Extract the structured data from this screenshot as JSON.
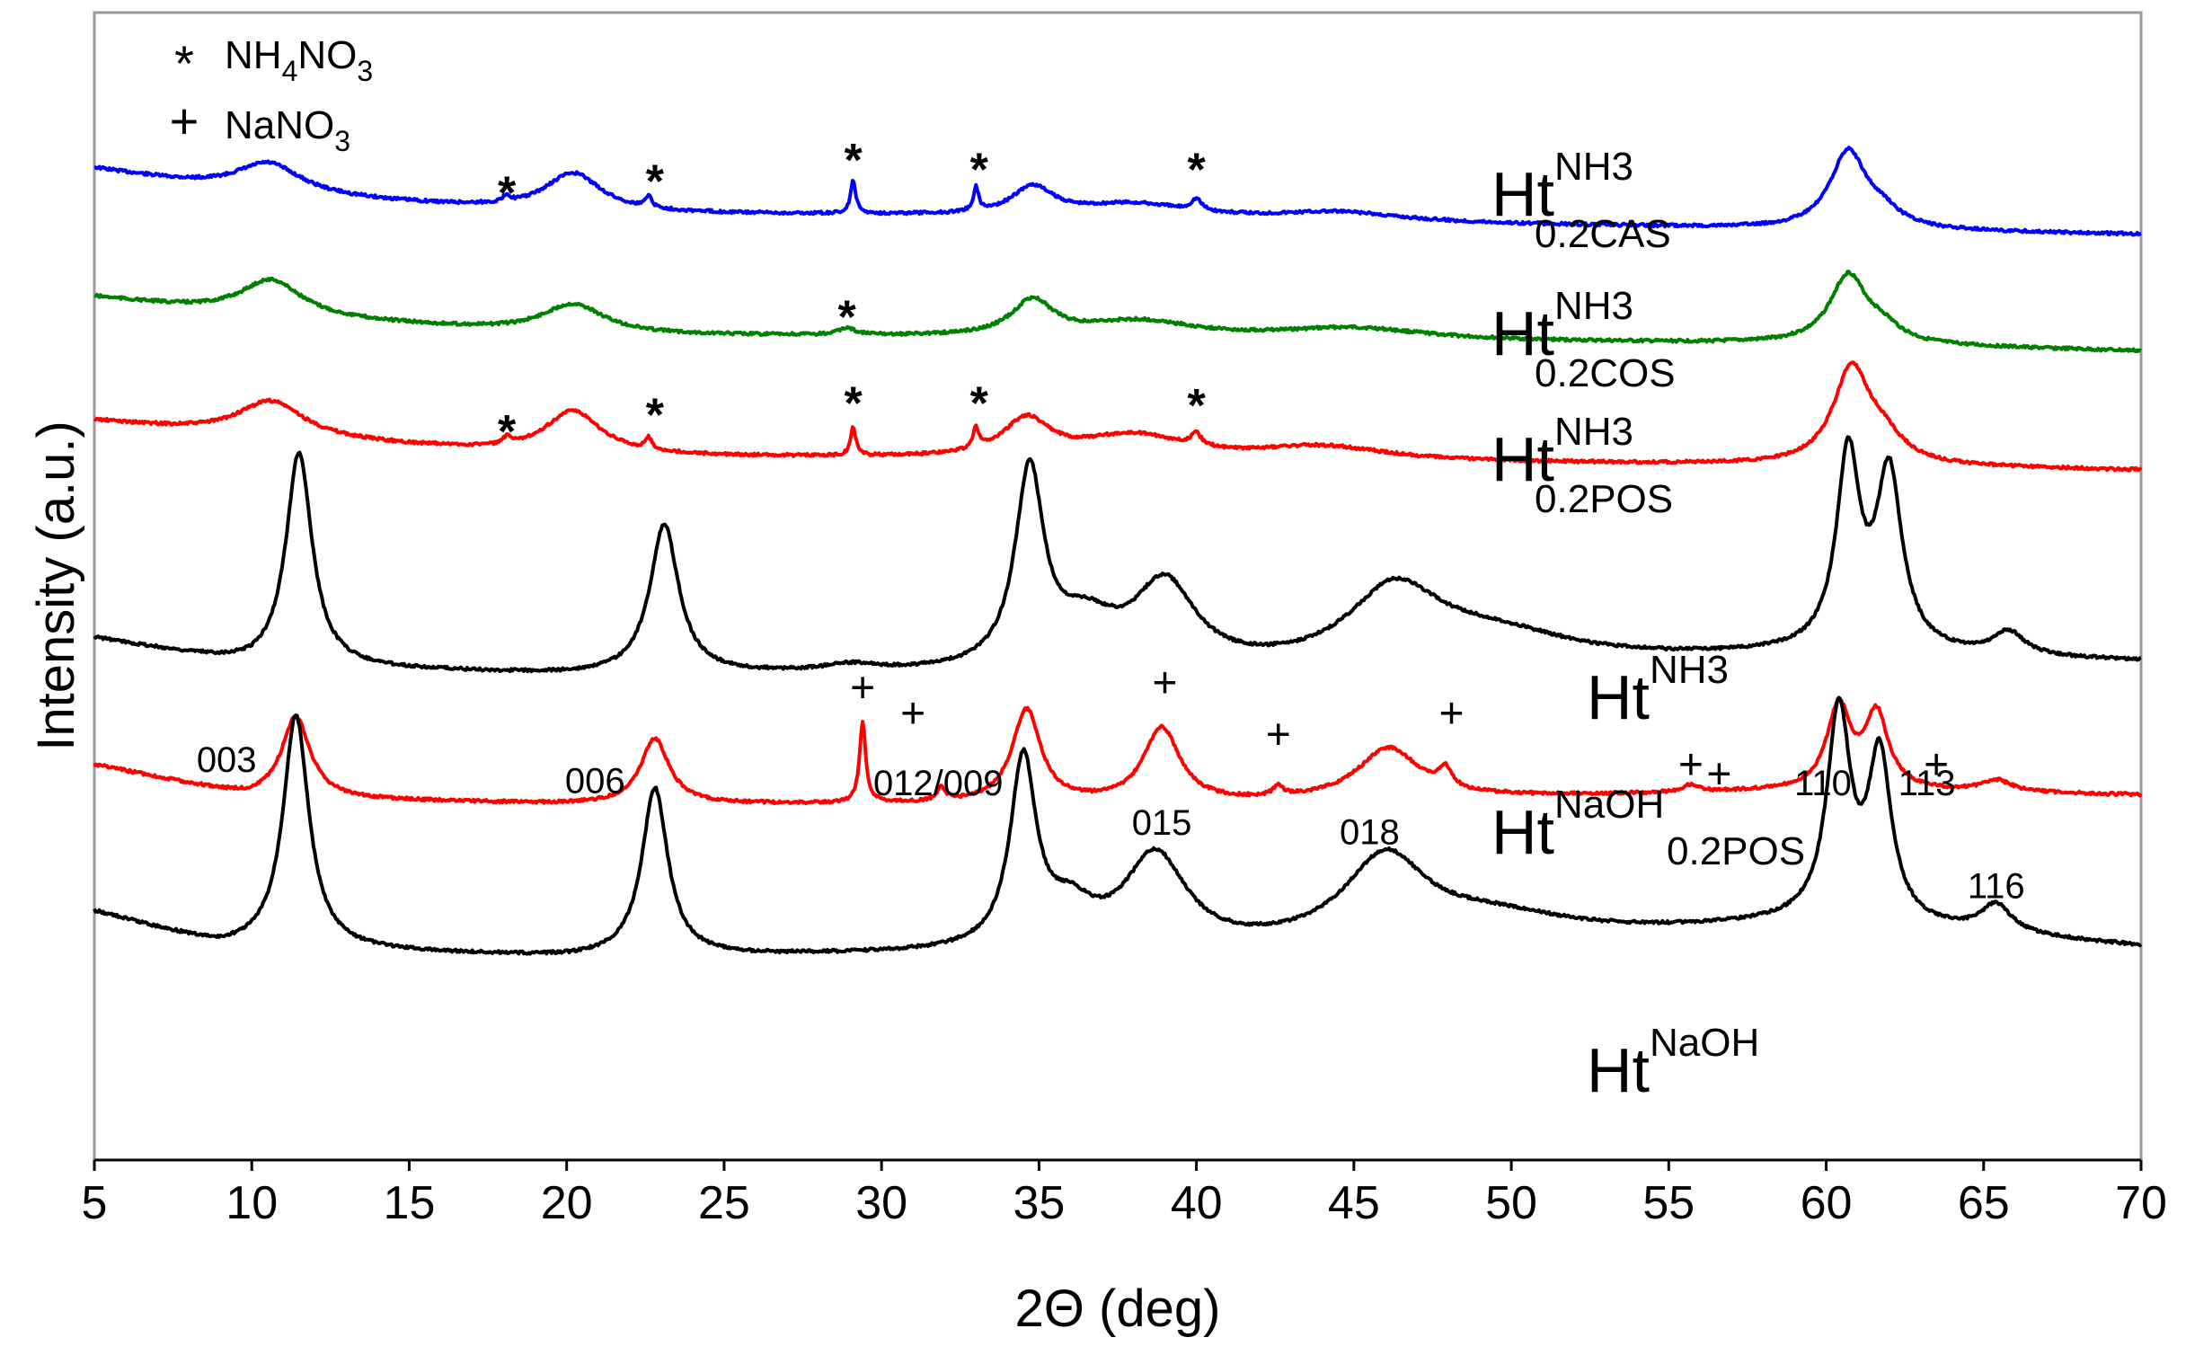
{
  "chart_data": {
    "type": "line",
    "title": "",
    "xlabel": "2Θ (deg)",
    "ylabel": "Intensity (a.u.)",
    "xlim": [
      5,
      70
    ],
    "xticks": [
      5,
      10,
      15,
      20,
      25,
      30,
      35,
      40,
      45,
      50,
      55,
      60,
      65,
      70
    ],
    "grid": false,
    "legend": {
      "position": "top-left",
      "entries": [
        {
          "symbol": "*",
          "base": "NH",
          "sub1": "4",
          "mid": "NO",
          "sub2": "3"
        },
        {
          "symbol": "+",
          "base": "NaNO",
          "sub1": "3",
          "mid": "",
          "sub2": ""
        }
      ]
    },
    "series": [
      {
        "id": "cas",
        "color": "#0000ff",
        "label": {
          "base": "Ht",
          "sup": "NH3",
          "sub": "0.2CAS"
        },
        "baseline": [
          [
            5,
            0.67
          ],
          [
            10,
            0.78
          ],
          [
            20,
            0.86
          ],
          [
            30,
            0.87
          ],
          [
            40,
            0.89
          ],
          [
            50,
            0.91
          ],
          [
            60,
            0.93
          ],
          [
            70,
            0.95
          ]
        ],
        "peaks": [
          [
            10.5,
            0.14,
            1.3
          ],
          [
            20.2,
            0.17,
            1.1
          ],
          [
            34.8,
            0.12,
            0.8
          ],
          [
            38,
            0.06,
            2.2
          ],
          [
            44.5,
            0.04,
            2.5
          ],
          [
            60.7,
            0.33,
            0.7
          ],
          [
            61.8,
            0.06,
            0.7
          ],
          [
            18.1,
            0.03,
            0.12
          ],
          [
            22.6,
            0.05,
            0.12
          ],
          [
            29.1,
            0.14,
            0.1
          ],
          [
            33,
            0.1,
            0.1
          ],
          [
            40,
            0.05,
            0.2
          ]
        ]
      },
      {
        "id": "cos",
        "color": "#008000",
        "label": {
          "base": "Ht",
          "sup": "NH3",
          "sub": "0.2COS"
        },
        "baseline": [
          [
            5,
            1.22
          ],
          [
            10,
            1.3
          ],
          [
            20,
            1.38
          ],
          [
            30,
            1.39
          ],
          [
            40,
            1.4
          ],
          [
            50,
            1.41
          ],
          [
            60,
            1.42
          ],
          [
            70,
            1.45
          ]
        ],
        "peaks": [
          [
            10.6,
            0.16,
            1.2
          ],
          [
            20.2,
            0.13,
            1.2
          ],
          [
            34.8,
            0.15,
            0.8
          ],
          [
            38.2,
            0.07,
            2.2
          ],
          [
            45,
            0.05,
            2.8
          ],
          [
            60.7,
            0.29,
            0.7
          ],
          [
            61.8,
            0.06,
            0.7
          ],
          [
            28.9,
            0.03,
            0.3
          ]
        ]
      },
      {
        "id": "pos",
        "color": "#ff0000",
        "label": {
          "base": "Ht",
          "sup": "NH3",
          "sub": "0.2POS"
        },
        "baseline": [
          [
            5,
            1.75
          ],
          [
            10,
            1.82
          ],
          [
            20,
            1.9
          ],
          [
            30,
            1.91
          ],
          [
            40,
            1.92
          ],
          [
            50,
            1.93
          ],
          [
            60,
            1.94
          ],
          [
            70,
            1.96
          ]
        ],
        "peaks": [
          [
            10.6,
            0.16,
            1.3
          ],
          [
            20.2,
            0.19,
            1.1
          ],
          [
            34.6,
            0.16,
            0.9
          ],
          [
            38,
            0.1,
            2
          ],
          [
            44,
            0.06,
            2.5
          ],
          [
            60.8,
            0.4,
            0.7
          ],
          [
            61.8,
            0.1,
            0.8
          ],
          [
            18.1,
            0.03,
            0.12
          ],
          [
            22.6,
            0.05,
            0.12
          ],
          [
            29.1,
            0.12,
            0.1
          ],
          [
            33,
            0.09,
            0.1
          ],
          [
            40,
            0.05,
            0.2
          ]
        ]
      },
      {
        "id": "ht-nh3",
        "color": "#000000",
        "label": {
          "base": "Ht",
          "sup": "NH3",
          "sub": ""
        },
        "baseline": [
          [
            5,
            2.68
          ],
          [
            10,
            2.8
          ],
          [
            20,
            2.84
          ],
          [
            30,
            2.84
          ],
          [
            40,
            2.84
          ],
          [
            50,
            2.8
          ],
          [
            60,
            2.75
          ],
          [
            70,
            2.78
          ]
        ],
        "peaks": [
          [
            11.5,
            0.92,
            0.5
          ],
          [
            23.1,
            0.64,
            0.55
          ],
          [
            34.7,
            0.83,
            0.55
          ],
          [
            36.5,
            0.18,
            1.2
          ],
          [
            39,
            0.36,
            1.2
          ],
          [
            46.3,
            0.32,
            1.8
          ],
          [
            49.5,
            0.12,
            3
          ],
          [
            60.7,
            0.82,
            0.45
          ],
          [
            62,
            0.75,
            0.5
          ],
          [
            65.8,
            0.1,
            0.6
          ],
          [
            29,
            0.03,
            1
          ]
        ]
      },
      {
        "id": "naoh-pos",
        "color": "#ff0000",
        "label": {
          "base": "Ht",
          "sup": "NaOH",
          "sub": "0.2POS"
        },
        "baseline": [
          [
            5,
            3.22
          ],
          [
            10,
            3.36
          ],
          [
            20,
            3.39
          ],
          [
            30,
            3.39
          ],
          [
            40,
            3.39
          ],
          [
            50,
            3.36
          ],
          [
            60,
            3.33
          ],
          [
            70,
            3.35
          ]
        ],
        "peaks": [
          [
            11.4,
            0.35,
            0.55
          ],
          [
            22.8,
            0.28,
            0.55
          ],
          [
            34.6,
            0.4,
            0.55
          ],
          [
            38.9,
            0.32,
            0.7
          ],
          [
            46.1,
            0.22,
            1.2
          ],
          [
            60.4,
            0.35,
            0.45
          ],
          [
            61.6,
            0.32,
            0.45
          ],
          [
            65.4,
            0.05,
            0.6
          ],
          [
            29.4,
            0.34,
            0.12
          ],
          [
            31.9,
            0.06,
            0.15
          ],
          [
            42.6,
            0.04,
            0.2
          ],
          [
            47.9,
            0.08,
            0.25
          ],
          [
            55.7,
            0.03,
            0.3
          ]
        ]
      },
      {
        "id": "ht-naoh",
        "color": "#000000",
        "label": {
          "base": "Ht",
          "sup": "NaOH",
          "sub": ""
        },
        "baseline": [
          [
            5,
            3.85
          ],
          [
            9,
            4.0
          ],
          [
            20,
            4.05
          ],
          [
            30,
            4.04
          ],
          [
            40,
            4.03
          ],
          [
            50,
            3.98
          ],
          [
            60,
            3.9
          ],
          [
            70,
            4.0
          ]
        ],
        "peaks": [
          [
            11.4,
            1.0,
            0.5
          ],
          [
            22.8,
            0.72,
            0.5
          ],
          [
            34.5,
            0.8,
            0.5
          ],
          [
            36,
            0.15,
            0.9
          ],
          [
            38.7,
            0.4,
            1.2
          ],
          [
            46,
            0.36,
            1.6
          ],
          [
            49.5,
            0.1,
            3
          ],
          [
            60.4,
            0.88,
            0.45
          ],
          [
            61.7,
            0.7,
            0.45
          ],
          [
            65.4,
            0.12,
            0.6
          ]
        ]
      }
    ],
    "hkl_labels": [
      {
        "text": "003",
        "x": 9.2,
        "y": 3.25
      },
      {
        "text": "006",
        "x": 20.9,
        "y": 3.34
      },
      {
        "text": "012/009",
        "x": 31.8,
        "y": 3.35
      },
      {
        "text": "015",
        "x": 38.9,
        "y": 3.52
      },
      {
        "text": "018",
        "x": 45.5,
        "y": 3.56
      },
      {
        "text": "110",
        "x": 59.9,
        "y": 3.35
      },
      {
        "text": "113",
        "x": 63.2,
        "y": 3.35
      },
      {
        "text": "116",
        "x": 65.4,
        "y": 3.79
      }
    ],
    "nh4no3_marks": [
      {
        "x": 18.1,
        "y": 0.71
      },
      {
        "x": 22.8,
        "y": 0.66
      },
      {
        "x": 29.1,
        "y": 0.57
      },
      {
        "x": 33.1,
        "y": 0.61
      },
      {
        "x": 40,
        "y": 0.61
      },
      {
        "x": 28.9,
        "y": 1.24
      },
      {
        "x": 18.1,
        "y": 1.73
      },
      {
        "x": 22.8,
        "y": 1.66
      },
      {
        "x": 29.1,
        "y": 1.61
      },
      {
        "x": 33.1,
        "y": 1.61
      },
      {
        "x": 40,
        "y": 1.62
      }
    ],
    "nano3_marks": [
      {
        "x": 29.4,
        "y": 2.89
      },
      {
        "x": 31,
        "y": 3.0
      },
      {
        "x": 39,
        "y": 2.87
      },
      {
        "x": 42.6,
        "y": 3.09
      },
      {
        "x": 48.1,
        "y": 3.0
      },
      {
        "x": 55.7,
        "y": 3.22
      },
      {
        "x": 56.6,
        "y": 3.26
      },
      {
        "x": 63.5,
        "y": 3.22
      }
    ]
  }
}
